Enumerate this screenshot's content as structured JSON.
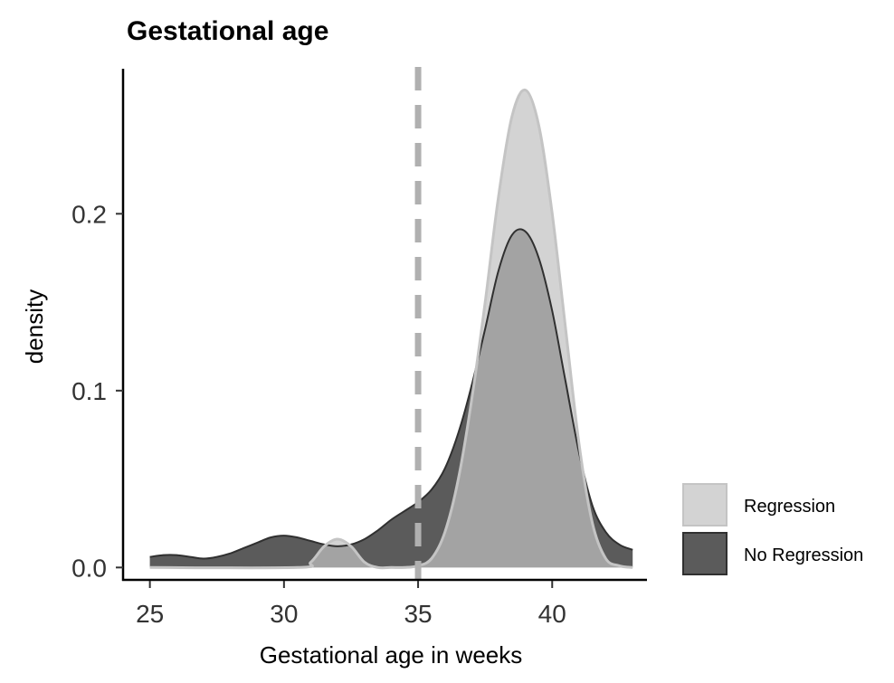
{
  "chart_data": {
    "type": "area",
    "title": "Gestational age",
    "xlabel": "Gestational age in weeks",
    "ylabel": "density",
    "xlim": [
      24,
      43.5
    ],
    "ylim": [
      -0.007,
      0.282
    ],
    "x_ticks": [
      25,
      30,
      35,
      40
    ],
    "x_tick_labels": [
      "25",
      "30",
      "35",
      "40"
    ],
    "y_ticks": [
      0.0,
      0.1,
      0.2
    ],
    "y_tick_labels": [
      "0.0",
      "0.1",
      "0.2"
    ],
    "grid": false,
    "legend_position": "right",
    "reference_line": {
      "x": 35,
      "style": "dashed",
      "color": "#b0b0b0"
    },
    "series": [
      {
        "name": "No Regression",
        "fill": "#5b5b5b",
        "stroke": "#303030",
        "points": [
          [
            25,
            0.006
          ],
          [
            25.5,
            0.007
          ],
          [
            26,
            0.007
          ],
          [
            26.5,
            0.006
          ],
          [
            27,
            0.005
          ],
          [
            27.5,
            0.006
          ],
          [
            28,
            0.008
          ],
          [
            28.5,
            0.011
          ],
          [
            29,
            0.014
          ],
          [
            29.5,
            0.017
          ],
          [
            30,
            0.018
          ],
          [
            30.5,
            0.017
          ],
          [
            31,
            0.015
          ],
          [
            31.5,
            0.013
          ],
          [
            32,
            0.012
          ],
          [
            32.5,
            0.013
          ],
          [
            33,
            0.016
          ],
          [
            33.5,
            0.021
          ],
          [
            34,
            0.027
          ],
          [
            34.5,
            0.032
          ],
          [
            35,
            0.037
          ],
          [
            35.5,
            0.044
          ],
          [
            36,
            0.056
          ],
          [
            36.5,
            0.076
          ],
          [
            37,
            0.103
          ],
          [
            37.5,
            0.135
          ],
          [
            38,
            0.168
          ],
          [
            38.5,
            0.188
          ],
          [
            39,
            0.19
          ],
          [
            39.5,
            0.175
          ],
          [
            40,
            0.145
          ],
          [
            40.5,
            0.105
          ],
          [
            41,
            0.065
          ],
          [
            41.5,
            0.035
          ],
          [
            42,
            0.02
          ],
          [
            42.5,
            0.013
          ],
          [
            43,
            0.01
          ]
        ]
      },
      {
        "name": "Regression",
        "fill": "#d3d3d3",
        "stroke": "#c4c4c4",
        "points": [
          [
            25,
            0.0
          ],
          [
            30.5,
            0.0
          ],
          [
            31,
            0.003
          ],
          [
            31.5,
            0.012
          ],
          [
            32,
            0.016
          ],
          [
            32.5,
            0.012
          ],
          [
            33,
            0.003
          ],
          [
            33.5,
            0.0
          ],
          [
            34,
            0.0
          ],
          [
            34.5,
            0.0
          ],
          [
            35,
            0.001
          ],
          [
            35.5,
            0.005
          ],
          [
            36,
            0.02
          ],
          [
            36.5,
            0.05
          ],
          [
            37,
            0.095
          ],
          [
            37.5,
            0.15
          ],
          [
            38,
            0.21
          ],
          [
            38.5,
            0.255
          ],
          [
            39,
            0.27
          ],
          [
            39.5,
            0.25
          ],
          [
            40,
            0.2
          ],
          [
            40.5,
            0.135
          ],
          [
            41,
            0.07
          ],
          [
            41.5,
            0.025
          ],
          [
            42,
            0.005
          ],
          [
            42.5,
            0.001
          ],
          [
            43,
            0.0
          ]
        ]
      }
    ],
    "legend": [
      {
        "label": "Regression",
        "fill": "#d3d3d3",
        "stroke": "#c4c4c4"
      },
      {
        "label": "No Regression",
        "fill": "#5b5b5b",
        "stroke": "#303030"
      }
    ]
  }
}
